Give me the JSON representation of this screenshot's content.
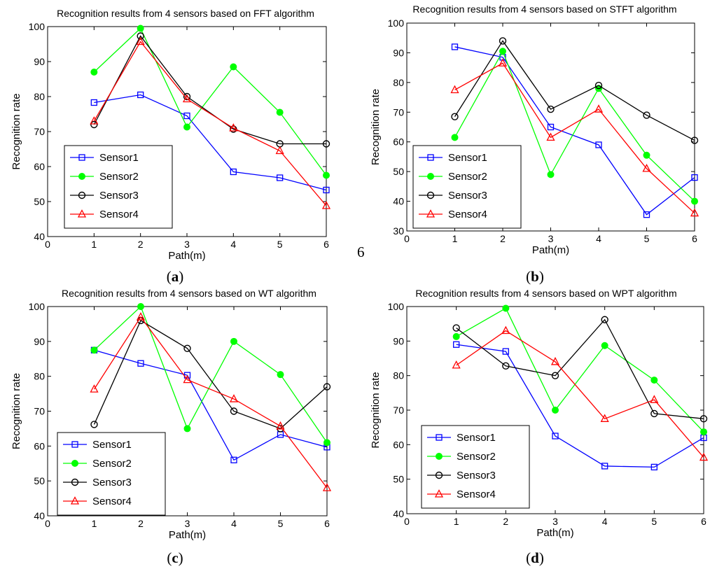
{
  "stray_label": "6",
  "series_colors": [
    "#0000ff",
    "#00ff00",
    "#000000",
    "#ff0000"
  ],
  "series_markers": [
    "square",
    "circle-filled",
    "circle-open",
    "triangle"
  ],
  "chart_data": [
    {
      "type": "line",
      "title": "Recognition results from 4 sensors based on FFT algorithm",
      "xlabel": "Path(m)",
      "ylabel": "Recognition rate",
      "xlim": [
        0,
        6
      ],
      "ylim": [
        40,
        100
      ],
      "xticks": [
        "0",
        "1",
        "2",
        "3",
        "4",
        "5",
        "6"
      ],
      "yticks": [
        "40",
        "50",
        "60",
        "70",
        "80",
        "90",
        "100"
      ],
      "caption": {
        "open": "(",
        "letter": "a",
        "close": ")"
      },
      "legend": "bottom-left",
      "x": [
        1,
        2,
        3,
        4,
        5,
        6
      ],
      "series": [
        {
          "name": "Sensor1",
          "values": [
            78.3,
            80.5,
            74.5,
            58.5,
            56.8,
            53.3
          ]
        },
        {
          "name": "Sensor2",
          "values": [
            87.0,
            99.5,
            71.3,
            88.5,
            75.5,
            57.5
          ]
        },
        {
          "name": "Sensor3",
          "values": [
            72.0,
            97.3,
            80.0,
            70.7,
            66.5,
            66.5
          ]
        },
        {
          "name": "Sensor4",
          "values": [
            73.0,
            95.7,
            79.3,
            71.0,
            64.5,
            48.8
          ]
        }
      ]
    },
    {
      "type": "line",
      "title": "Recognition results from 4 sensors based on STFT algorithm",
      "xlabel": "Path(m)",
      "ylabel": "Recognition rate",
      "xlim": [
        0,
        6
      ],
      "ylim": [
        30,
        100
      ],
      "xticks": [
        "0",
        "1",
        "2",
        "3",
        "4",
        "5",
        "6"
      ],
      "yticks": [
        "30",
        "40",
        "50",
        "60",
        "70",
        "80",
        "90",
        "100"
      ],
      "caption": {
        "open": "(",
        "letter": "b",
        "close": ")"
      },
      "legend": "bottom-left",
      "x": [
        1,
        2,
        3,
        4,
        5,
        6
      ],
      "series": [
        {
          "name": "Sensor1",
          "values": [
            92.0,
            88.5,
            65.0,
            59.0,
            35.5,
            48.0
          ]
        },
        {
          "name": "Sensor2",
          "values": [
            61.5,
            90.5,
            49.0,
            78.0,
            55.5,
            40.0
          ]
        },
        {
          "name": "Sensor3",
          "values": [
            68.5,
            94.0,
            71.0,
            79.0,
            69.0,
            60.5
          ]
        },
        {
          "name": "Sensor4",
          "values": [
            77.5,
            86.5,
            61.5,
            71.0,
            51.0,
            36.0
          ]
        }
      ]
    },
    {
      "type": "line",
      "title": "Recognition results from 4 sensors based on WT algorithm",
      "xlabel": "Path(m)",
      "ylabel": "Recognition rate",
      "xlim": [
        0,
        6
      ],
      "ylim": [
        40,
        100
      ],
      "xticks": [
        "0",
        "1",
        "2",
        "3",
        "4",
        "5",
        "6"
      ],
      "yticks": [
        "40",
        "50",
        "60",
        "70",
        "80",
        "90",
        "100"
      ],
      "caption": {
        "open": "(",
        "letter": "c",
        "close": ")"
      },
      "legend": "bottom-left",
      "x": [
        1,
        2,
        3,
        4,
        5,
        6
      ],
      "series": [
        {
          "name": "Sensor1",
          "values": [
            87.5,
            83.7,
            80.3,
            56.0,
            63.3,
            59.7
          ]
        },
        {
          "name": "Sensor2",
          "values": [
            87.5,
            100.0,
            65.0,
            90.0,
            80.5,
            61.0
          ]
        },
        {
          "name": "Sensor3",
          "values": [
            66.2,
            96.0,
            88.0,
            70.0,
            65.0,
            77.0
          ]
        },
        {
          "name": "Sensor4",
          "values": [
            76.3,
            97.0,
            79.0,
            73.5,
            65.7,
            48.0
          ]
        }
      ]
    },
    {
      "type": "line",
      "title": "Recognition results from 4 sensors based on WPT algorithm",
      "xlabel": "Path(m)",
      "ylabel": "Recognition rate",
      "xlim": [
        0,
        6
      ],
      "ylim": [
        40,
        100
      ],
      "xticks": [
        "0",
        "1",
        "2",
        "3",
        "4",
        "5",
        "6"
      ],
      "yticks": [
        "40",
        "50",
        "60",
        "70",
        "80",
        "90",
        "100"
      ],
      "caption": {
        "open": "(",
        "letter": "d",
        "close": ")"
      },
      "legend": "bottom-left",
      "x": [
        1,
        2,
        3,
        4,
        5,
        6
      ],
      "series": [
        {
          "name": "Sensor1",
          "values": [
            89.0,
            87.0,
            62.5,
            53.8,
            53.5,
            62.0
          ]
        },
        {
          "name": "Sensor2",
          "values": [
            91.3,
            99.5,
            70.0,
            88.7,
            78.7,
            63.7
          ]
        },
        {
          "name": "Sensor3",
          "values": [
            93.8,
            82.8,
            80.0,
            96.2,
            69.0,
            67.5
          ]
        },
        {
          "name": "Sensor4",
          "values": [
            83.0,
            93.0,
            84.0,
            67.5,
            73.0,
            56.3
          ]
        }
      ]
    }
  ]
}
